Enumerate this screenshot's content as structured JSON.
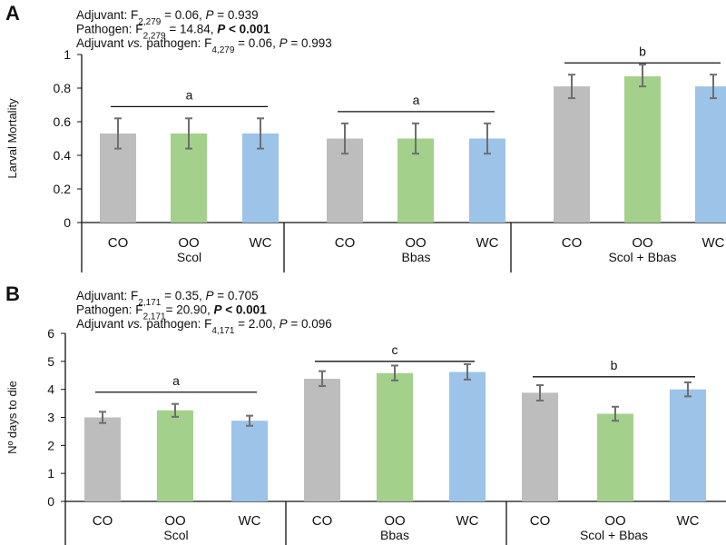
{
  "chart_data": [
    {
      "panel": "A",
      "type": "bar",
      "stats_lines": [
        {
          "parts": [
            {
              "t": "Adjuvant: F"
            },
            {
              "t": "2,279",
              "sub": true
            },
            {
              "t": " = 0.06, "
            },
            {
              "t": "P",
              "i": true
            },
            {
              "t": " = 0.939"
            }
          ]
        },
        {
          "parts": [
            {
              "t": "Pathogen: F"
            },
            {
              "t": "2,279",
              "sub": true
            },
            {
              "t": " = 14.84, "
            },
            {
              "t": "P",
              "i": true,
              "b": true
            },
            {
              "t": " < 0.001",
              "b": true
            }
          ]
        },
        {
          "parts": [
            {
              "t": "Adjuvant "
            },
            {
              "t": "vs.",
              "i": true
            },
            {
              "t": " pathogen: F"
            },
            {
              "t": "4,279",
              "sub": true
            },
            {
              "t": " = 0.06, "
            },
            {
              "t": "P",
              "i": true
            },
            {
              "t": " = 0.993"
            }
          ]
        }
      ],
      "ylabel": "Larval Mortality",
      "ylim": [
        0,
        1
      ],
      "yticks": [
        "0",
        "0.2",
        "0.4",
        "0.6",
        "0.8",
        "1"
      ],
      "ytick_values": [
        0,
        0.2,
        0.4,
        0.6,
        0.8,
        1
      ],
      "groups": [
        {
          "name": "Scol",
          "letter": "a",
          "bars": [
            {
              "category": "CO",
              "value": 0.53,
              "err_low": 0.44,
              "err_high": 0.62
            },
            {
              "category": "OO",
              "value": 0.53,
              "err_low": 0.44,
              "err_high": 0.62
            },
            {
              "category": "WC",
              "value": 0.53,
              "err_low": 0.44,
              "err_high": 0.62
            }
          ]
        },
        {
          "name": "Bbas",
          "letter": "a",
          "bars": [
            {
              "category": "CO",
              "value": 0.5,
              "err_low": 0.41,
              "err_high": 0.59
            },
            {
              "category": "OO",
              "value": 0.5,
              "err_low": 0.41,
              "err_high": 0.59
            },
            {
              "category": "WC",
              "value": 0.5,
              "err_low": 0.41,
              "err_high": 0.59
            }
          ]
        },
        {
          "name": "Scol + Bbas",
          "letter": "b",
          "bars": [
            {
              "category": "CO",
              "value": 0.81,
              "err_low": 0.74,
              "err_high": 0.88
            },
            {
              "category": "OO",
              "value": 0.87,
              "err_low": 0.81,
              "err_high": 0.94
            },
            {
              "category": "WC",
              "value": 0.81,
              "err_low": 0.74,
              "err_high": 0.88
            }
          ]
        }
      ]
    },
    {
      "panel": "B",
      "type": "bar",
      "stats_lines": [
        {
          "parts": [
            {
              "t": "Adjuvant: F"
            },
            {
              "t": "2,171",
              "sub": true
            },
            {
              "t": " = 0.35, "
            },
            {
              "t": "P",
              "i": true
            },
            {
              "t": " = 0.705"
            }
          ]
        },
        {
          "parts": [
            {
              "t": "Pathogen: F"
            },
            {
              "t": "2,171",
              "sub": true
            },
            {
              "t": "= 20.90, "
            },
            {
              "t": "P",
              "i": true,
              "b": true
            },
            {
              "t": " < 0.001",
              "b": true
            }
          ]
        },
        {
          "parts": [
            {
              "t": "Adjuvant "
            },
            {
              "t": "vs.",
              "i": true
            },
            {
              "t": " pathogen: F"
            },
            {
              "t": "4,171",
              "sub": true
            },
            {
              "t": " = 2.00, "
            },
            {
              "t": "P",
              "i": true
            },
            {
              "t": " = 0.096"
            }
          ]
        }
      ],
      "ylabel": "Nº days to die",
      "ylim": [
        0,
        6
      ],
      "yticks": [
        "0",
        "1",
        "2",
        "3",
        "4",
        "5",
        "6"
      ],
      "ytick_values": [
        0,
        1,
        2,
        3,
        4,
        5,
        6
      ],
      "groups": [
        {
          "name": "Scol",
          "letter": "a",
          "bars": [
            {
              "category": "CO",
              "value": 3.0,
              "err_low": 2.8,
              "err_high": 3.2
            },
            {
              "category": "OO",
              "value": 3.25,
              "err_low": 3.02,
              "err_high": 3.48
            },
            {
              "category": "WC",
              "value": 2.88,
              "err_low": 2.7,
              "err_high": 3.06
            }
          ]
        },
        {
          "name": "Bbas",
          "letter": "c",
          "bars": [
            {
              "category": "CO",
              "value": 4.38,
              "err_low": 4.12,
              "err_high": 4.65
            },
            {
              "category": "OO",
              "value": 4.58,
              "err_low": 4.32,
              "err_high": 4.85
            },
            {
              "category": "WC",
              "value": 4.62,
              "err_low": 4.35,
              "err_high": 4.9
            }
          ]
        },
        {
          "name": "Scol + Bbas",
          "letter": "b",
          "bars": [
            {
              "category": "CO",
              "value": 3.88,
              "err_low": 3.6,
              "err_high": 4.15
            },
            {
              "category": "OO",
              "value": 3.13,
              "err_low": 2.88,
              "err_high": 3.38
            },
            {
              "category": "WC",
              "value": 4.0,
              "err_low": 3.75,
              "err_high": 4.25
            }
          ]
        }
      ]
    }
  ],
  "colors": {
    "CO": "#bdbdbd",
    "OO": "#a3d08a",
    "WC": "#9cc3e8",
    "error_bar": "#6e6e6e",
    "axis": "#111111"
  }
}
